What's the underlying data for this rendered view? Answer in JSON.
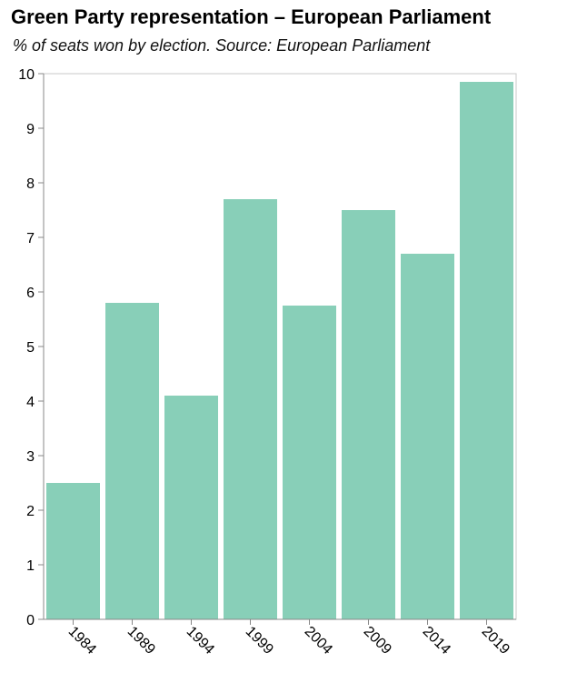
{
  "header": {
    "title": "Green Party representation – European Parliament",
    "subtitle": "% of seats won by election. Source: European Parliament"
  },
  "chart_data": {
    "type": "bar",
    "categories": [
      "1984",
      "1989",
      "1994",
      "1999",
      "2004",
      "2009",
      "2014",
      "2019"
    ],
    "values": [
      2.5,
      5.8,
      4.1,
      7.7,
      5.75,
      7.5,
      6.7,
      9.85
    ],
    "title": "Green Party representation – European Parliament",
    "subtitle": "% of seats won by election. Source: European Parliament",
    "xlabel": "",
    "ylabel": "",
    "ylim": [
      0,
      10
    ],
    "yticks": [
      0,
      1,
      2,
      3,
      4,
      5,
      6,
      7,
      8,
      9,
      10
    ],
    "bar_color": "#88cfb8",
    "grid": false,
    "legend": "none"
  }
}
